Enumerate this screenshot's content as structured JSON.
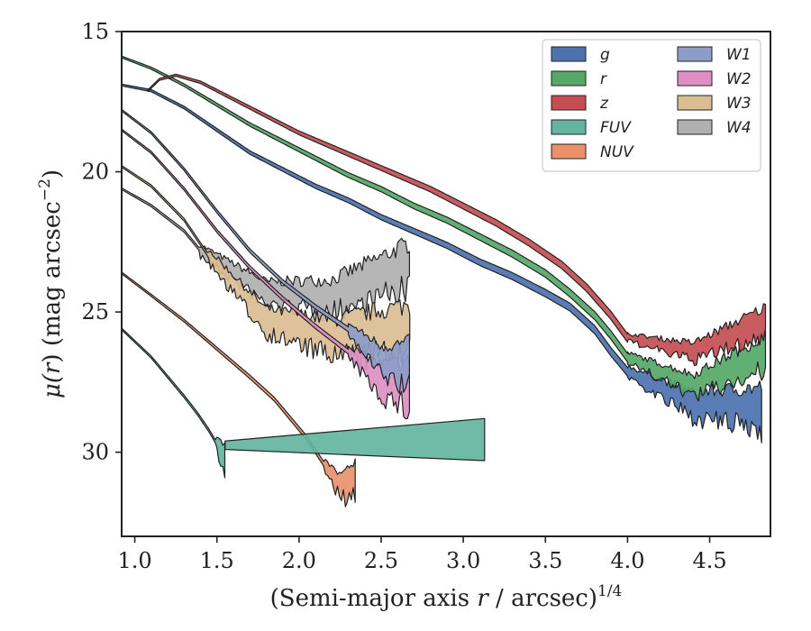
{
  "chart_data": {
    "type": "area",
    "xlabel_main": "(Semi-major axis ",
    "xlabel_var": "r",
    "xlabel_tail": " / arcsec)",
    "xlabel_sup": "1/4",
    "ylabel_pre": "μ(",
    "ylabel_var": "r",
    "ylabel_post": ") (mag arcsec",
    "ylabel_sup": "−2",
    "ylabel_end": ")",
    "xlim": [
      0.92,
      4.87
    ],
    "ylim": [
      33.0,
      15.0
    ],
    "y_inverted": true,
    "x_ticks": [
      1.0,
      1.5,
      2.0,
      2.5,
      3.0,
      3.5,
      4.0,
      4.5
    ],
    "x_tick_labels": [
      "1.0",
      "1.5",
      "2.0",
      "2.5",
      "3.0",
      "3.5",
      "4.0",
      "4.5"
    ],
    "y_ticks": [
      15,
      20,
      25,
      30
    ],
    "y_tick_labels": [
      "15",
      "20",
      "25",
      "30"
    ],
    "grid": false,
    "legend_position": "top-right",
    "series": [
      {
        "name": "g",
        "color": "#4c72b0",
        "profile": [
          [
            0.92,
            16.9
          ],
          [
            1.1,
            17.1
          ],
          [
            1.3,
            17.7
          ],
          [
            1.5,
            18.5
          ],
          [
            1.7,
            19.3
          ],
          [
            1.9,
            19.9
          ],
          [
            2.1,
            20.5
          ],
          [
            2.3,
            21.0
          ],
          [
            2.5,
            21.6
          ],
          [
            2.7,
            22.1
          ],
          [
            2.9,
            22.6
          ],
          [
            3.1,
            23.2
          ],
          [
            3.3,
            23.7
          ],
          [
            3.5,
            24.3
          ],
          [
            3.65,
            24.8
          ],
          [
            3.8,
            25.6
          ],
          [
            3.9,
            26.4
          ],
          [
            4.0,
            27.1
          ]
        ],
        "noisy": [
          [
            4.0,
            27.1
          ],
          [
            4.4,
            28.3
          ],
          [
            4.82,
            28.4
          ]
        ],
        "spread": 1.3
      },
      {
        "name": "r",
        "color": "#55a868",
        "profile": [
          [
            0.92,
            15.9
          ],
          [
            1.1,
            16.3
          ],
          [
            1.3,
            16.9
          ],
          [
            1.5,
            17.6
          ],
          [
            1.7,
            18.3
          ],
          [
            1.9,
            18.9
          ],
          [
            2.1,
            19.5
          ],
          [
            2.3,
            20.1
          ],
          [
            2.5,
            20.6
          ],
          [
            2.7,
            21.2
          ],
          [
            2.9,
            21.7
          ],
          [
            3.1,
            22.3
          ],
          [
            3.3,
            22.9
          ],
          [
            3.5,
            23.6
          ],
          [
            3.65,
            24.3
          ],
          [
            3.8,
            25.1
          ],
          [
            3.9,
            25.8
          ],
          [
            4.0,
            26.6
          ]
        ],
        "noisy": [
          [
            4.0,
            26.6
          ],
          [
            4.4,
            27.6
          ],
          [
            4.85,
            26.4
          ]
        ],
        "spread": 1.1
      },
      {
        "name": "z",
        "color": "#c44e52",
        "profile": [
          [
            1.08,
            17.1
          ],
          [
            1.15,
            16.7
          ],
          [
            1.25,
            16.55
          ],
          [
            1.4,
            16.8
          ],
          [
            1.6,
            17.4
          ],
          [
            1.8,
            18.0
          ],
          [
            2.0,
            18.6
          ],
          [
            2.2,
            19.1
          ],
          [
            2.4,
            19.6
          ],
          [
            2.6,
            20.1
          ],
          [
            2.8,
            20.6
          ],
          [
            3.0,
            21.2
          ],
          [
            3.2,
            21.8
          ],
          [
            3.4,
            22.5
          ],
          [
            3.6,
            23.3
          ],
          [
            3.75,
            24.1
          ],
          [
            3.9,
            25.1
          ],
          [
            4.0,
            25.9
          ]
        ],
        "noisy": [
          [
            4.0,
            25.9
          ],
          [
            4.4,
            26.4
          ],
          [
            4.85,
            25.3
          ]
        ],
        "spread": 0.9
      },
      {
        "name": "FUV",
        "color": "#64b5a0",
        "profile": [
          [
            0.92,
            25.6
          ],
          [
            1.1,
            26.6
          ],
          [
            1.2,
            27.3
          ],
          [
            1.3,
            28.0
          ],
          [
            1.38,
            28.6
          ],
          [
            1.45,
            29.2
          ],
          [
            1.5,
            29.7
          ]
        ],
        "noisy": [
          [
            1.5,
            29.7
          ],
          [
            1.55,
            30.3
          ]
        ],
        "spread": 1.2,
        "wedge": [
          [
            1.55,
            29.6
          ],
          [
            3.13,
            28.8
          ],
          [
            3.13,
            30.3
          ],
          [
            1.55,
            29.9
          ]
        ]
      },
      {
        "name": "NUV",
        "color": "#e8916b",
        "profile": [
          [
            0.92,
            23.6
          ],
          [
            1.1,
            24.4
          ],
          [
            1.3,
            25.3
          ],
          [
            1.5,
            26.3
          ],
          [
            1.7,
            27.3
          ],
          [
            1.85,
            28.1
          ],
          [
            1.95,
            28.8
          ],
          [
            2.05,
            29.5
          ],
          [
            2.15,
            30.4
          ]
        ],
        "noisy": [
          [
            2.15,
            30.4
          ],
          [
            2.25,
            31.2
          ],
          [
            2.35,
            31.0
          ]
        ],
        "spread": 1.1
      },
      {
        "name": "W1",
        "color": "#8c9dc7",
        "profile": [
          [
            0.92,
            17.8
          ],
          [
            1.1,
            18.6
          ],
          [
            1.3,
            19.9
          ],
          [
            1.5,
            21.4
          ],
          [
            1.7,
            22.8
          ],
          [
            1.9,
            23.9
          ],
          [
            2.1,
            24.8
          ],
          [
            2.3,
            25.6
          ]
        ],
        "noisy": [
          [
            2.3,
            25.6
          ],
          [
            2.5,
            26.7
          ],
          [
            2.68,
            26.9
          ]
        ],
        "spread": 1.4
      },
      {
        "name": "W2",
        "color": "#dd8fc3",
        "profile": [
          [
            0.92,
            18.5
          ],
          [
            1.1,
            19.3
          ],
          [
            1.3,
            20.6
          ],
          [
            1.5,
            22.1
          ],
          [
            1.7,
            23.4
          ],
          [
            1.9,
            24.5
          ],
          [
            2.1,
            25.5
          ],
          [
            2.3,
            26.4
          ]
        ],
        "noisy": [
          [
            2.3,
            26.4
          ],
          [
            2.5,
            27.4
          ],
          [
            2.68,
            27.6
          ]
        ],
        "spread": 1.5
      },
      {
        "name": "W3",
        "color": "#dbbd94",
        "profile": [
          [
            0.92,
            19.8
          ],
          [
            1.1,
            20.5
          ],
          [
            1.3,
            21.7
          ],
          [
            1.45,
            23.0
          ]
        ],
        "noisy": [
          [
            1.45,
            23.0
          ],
          [
            1.8,
            25.3
          ],
          [
            2.2,
            25.9
          ],
          [
            2.68,
            25.6
          ]
        ],
        "spread": 1.6
      },
      {
        "name": "W4",
        "color": "#b0b0b0",
        "profile": [
          [
            0.92,
            20.6
          ],
          [
            1.1,
            21.2
          ],
          [
            1.3,
            22.1
          ],
          [
            1.4,
            22.8
          ]
        ],
        "noisy": [
          [
            1.4,
            22.8
          ],
          [
            1.8,
            24.3
          ],
          [
            2.2,
            24.4
          ],
          [
            2.68,
            23.3
          ]
        ],
        "spread": 1.4
      }
    ]
  }
}
